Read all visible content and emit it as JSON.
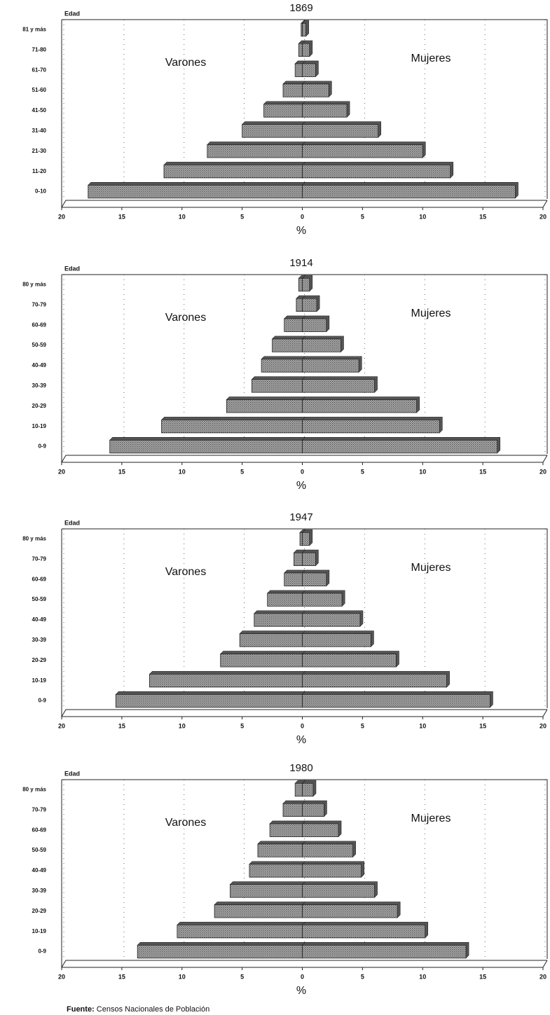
{
  "chart_data": [
    {
      "type": "pyramid",
      "title": "1869",
      "y_label": "Edad",
      "x_label": "%",
      "categories": [
        "0-10",
        "11-20",
        "21-30",
        "31-40",
        "41-50",
        "51-60",
        "61-70",
        "71-80",
        "81 y más"
      ],
      "series": [
        {
          "name": "Varones",
          "color": "#9a9a9a",
          "values": [
            17.8,
            11.5,
            7.9,
            5.0,
            3.2,
            1.6,
            0.6,
            0.3,
            0.1
          ]
        },
        {
          "name": "Mujeres",
          "color": "#9a9a9a",
          "values": [
            17.7,
            12.3,
            10.0,
            6.3,
            3.7,
            2.2,
            1.1,
            0.6,
            0.3
          ]
        }
      ],
      "xlim": [
        -20,
        20
      ],
      "xticks": [
        {
          "value": -20,
          "label": "20"
        },
        {
          "value": -15,
          "label": "15"
        },
        {
          "value": -10,
          "label": "10"
        },
        {
          "value": -5,
          "label": "5"
        },
        0,
        5,
        10,
        15,
        20
      ],
      "grid": true
    },
    {
      "type": "pyramid",
      "title": "1914",
      "y_label": "Edad",
      "x_label": "%",
      "categories": [
        "0-9",
        "10-19",
        "20-29",
        "30-39",
        "40-49",
        "50-59",
        "60-69",
        "70-79",
        "80 y más"
      ],
      "series": [
        {
          "name": "Varones",
          "color": "#9a9a9a",
          "values": [
            16.0,
            11.7,
            6.3,
            4.2,
            3.4,
            2.5,
            1.5,
            0.5,
            0.3
          ]
        },
        {
          "name": "Mujeres",
          "color": "#9a9a9a",
          "values": [
            16.2,
            11.4,
            9.5,
            6.0,
            4.7,
            3.2,
            2.0,
            1.2,
            0.6
          ]
        }
      ],
      "xlim": [
        -20,
        20
      ],
      "xticks": [
        {
          "value": -20,
          "label": "20"
        },
        {
          "value": -15,
          "label": "15"
        },
        {
          "value": -10,
          "label": "10"
        },
        {
          "value": -5,
          "label": "5"
        },
        0,
        5,
        10,
        15,
        20
      ],
      "grid": true
    },
    {
      "type": "pyramid",
      "title": "1947",
      "y_label": "Edad",
      "x_label": "%",
      "categories": [
        "0-9",
        "10-19",
        "20-29",
        "30-39",
        "40-49",
        "50-59",
        "60-69",
        "70-79",
        "80 y más"
      ],
      "series": [
        {
          "name": "Varones",
          "color": "#9a9a9a",
          "values": [
            15.5,
            12.7,
            6.8,
            5.2,
            4.0,
            2.9,
            1.5,
            0.7,
            0.2
          ]
        },
        {
          "name": "Mujeres",
          "color": "#9a9a9a",
          "values": [
            15.6,
            12.0,
            7.8,
            5.7,
            4.8,
            3.3,
            2.0,
            1.1,
            0.6
          ]
        }
      ],
      "xlim": [
        -20,
        20
      ],
      "xticks": [
        {
          "value": -20,
          "label": "20"
        },
        {
          "value": -15,
          "label": "15"
        },
        {
          "value": -10,
          "label": "10"
        },
        {
          "value": -5,
          "label": "5"
        },
        0,
        5,
        10,
        15,
        20
      ],
      "grid": true
    },
    {
      "type": "pyramid",
      "title": "1980",
      "y_label": "Edad",
      "x_label": "%",
      "categories": [
        "0-9",
        "10-19",
        "20-29",
        "30-39",
        "40-49",
        "50-59",
        "60-69",
        "70-79",
        "80 y más"
      ],
      "series": [
        {
          "name": "Varones",
          "color": "#9a9a9a",
          "values": [
            13.7,
            10.4,
            7.3,
            6.0,
            4.4,
            3.7,
            2.7,
            1.6,
            0.6
          ]
        },
        {
          "name": "Mujeres",
          "color": "#9a9a9a",
          "values": [
            13.6,
            10.2,
            7.9,
            6.0,
            4.9,
            4.2,
            3.0,
            1.8,
            0.9
          ]
        }
      ],
      "xlim": [
        -20,
        20
      ],
      "xticks": [
        {
          "value": -20,
          "label": "20"
        },
        {
          "value": -15,
          "label": "15"
        },
        {
          "value": -10,
          "label": "10"
        },
        {
          "value": -5,
          "label": "5"
        },
        0,
        5,
        10,
        15,
        20
      ],
      "grid": true
    }
  ],
  "source": {
    "label": "Fuente:",
    "text": "Censos Nacionales de Población"
  }
}
